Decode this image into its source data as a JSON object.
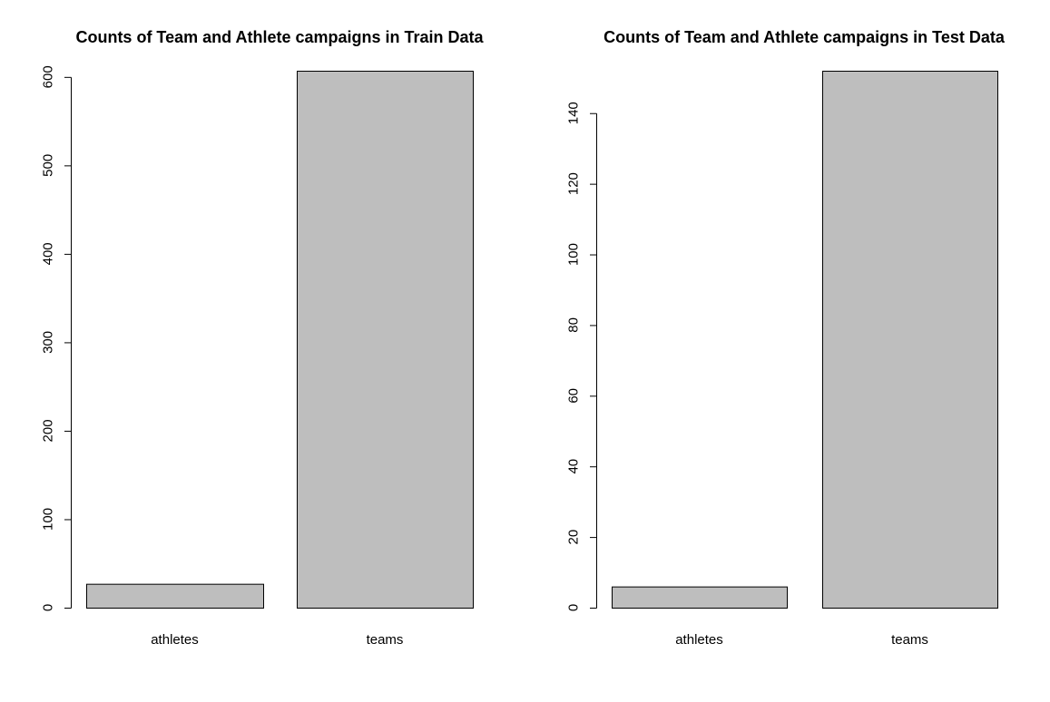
{
  "chart_data": [
    {
      "type": "bar",
      "title": "Counts of Team and Athlete campaigns in Train Data",
      "categories": [
        "athletes",
        "teams"
      ],
      "values": [
        27,
        607
      ],
      "xlabel": "",
      "ylabel": "",
      "ylim": [
        0,
        607
      ],
      "yticks": [
        0,
        100,
        200,
        300,
        400,
        500,
        600
      ],
      "bar_color": "#bebebe",
      "grid": false
    },
    {
      "type": "bar",
      "title": "Counts of Team and Athlete campaigns in Test Data",
      "categories": [
        "athletes",
        "teams"
      ],
      "values": [
        6,
        152
      ],
      "xlabel": "",
      "ylabel": "",
      "ylim": [
        0,
        152
      ],
      "yticks": [
        0,
        20,
        40,
        60,
        80,
        100,
        120,
        140
      ],
      "bar_color": "#bebebe",
      "grid": false
    }
  ]
}
